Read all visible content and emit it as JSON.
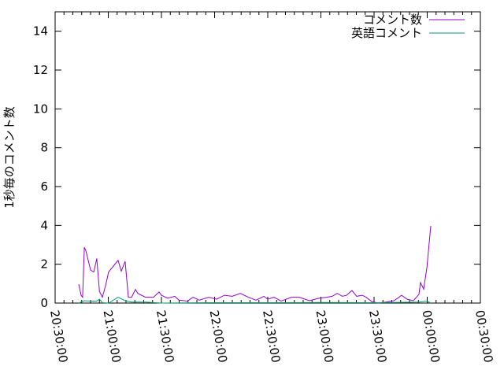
{
  "chart_data": {
    "type": "line",
    "title": "",
    "xlabel": "",
    "ylabel": "1秒毎のコメント数",
    "xlim": [
      "20:30:00",
      "00:30:00"
    ],
    "ylim": [
      0,
      15
    ],
    "x_ticks": [
      "20:30:00",
      "21:00:00",
      "21:30:00",
      "22:00:00",
      "22:30:00",
      "23:00:00",
      "23:30:00",
      "00:00:00",
      "00:30:00"
    ],
    "y_ticks": [
      "0",
      "2",
      "4",
      "6",
      "8",
      "10",
      "12",
      "14"
    ],
    "grid": false,
    "legend_position": "top-right",
    "series": [
      {
        "name": "コメント数",
        "color": "#9400d3",
        "x": [
          "20:43:20",
          "20:44:40",
          "20:45:30",
          "20:46:30",
          "20:47:20",
          "20:48:40",
          "20:50:00",
          "20:51:50",
          "20:53:30",
          "20:55:00",
          "20:56:40",
          "20:58:30",
          "21:00:10",
          "21:05:30",
          "21:07:20",
          "21:09:30",
          "21:11:20",
          "21:13:10",
          "21:15:20",
          "21:16:40",
          "21:21:00",
          "21:25:30",
          "21:28:40",
          "21:30:00",
          "21:33:30",
          "21:37:30",
          "21:39:50",
          "21:44:40",
          "21:47:50",
          "21:51:20",
          "21:56:40",
          "22:01:10",
          "22:05:30",
          "22:10:00",
          "22:14:30",
          "22:19:00",
          "22:23:20",
          "22:27:50",
          "22:30:00",
          "22:33:30",
          "22:37:30",
          "22:43:20",
          "22:47:50",
          "22:53:30",
          "22:59:00",
          "23:03:20",
          "23:06:20",
          "23:09:10",
          "23:12:10",
          "23:14:30",
          "23:17:30",
          "23:20:10",
          "23:23:20",
          "23:25:30",
          "23:28:40",
          "23:32:10",
          "23:36:40",
          "23:41:10",
          "23:43:20",
          "23:45:30",
          "23:48:40",
          "23:52:10",
          "23:55:20",
          "23:56:10",
          "23:58:00",
          "23:59:50",
          "00:02:00"
        ],
        "y": [
          0.97,
          0.4,
          0.3,
          2.87,
          2.7,
          2.2,
          1.7,
          1.6,
          2.3,
          0.6,
          0.3,
          0.9,
          1.6,
          2.2,
          1.65,
          2.15,
          0.3,
          0.3,
          0.7,
          0.5,
          0.3,
          0.3,
          0.57,
          0.4,
          0.25,
          0.35,
          0.15,
          0.1,
          0.3,
          0.15,
          0.3,
          0.2,
          0.4,
          0.35,
          0.5,
          0.3,
          0.15,
          0.35,
          0.2,
          0.3,
          0.1,
          0.3,
          0.3,
          0.12,
          0.25,
          0.3,
          0.35,
          0.5,
          0.35,
          0.4,
          0.65,
          0.35,
          0.4,
          0.3,
          0.08,
          0.0,
          0.05,
          0.12,
          0.25,
          0.4,
          0.2,
          0.12,
          0.45,
          1.05,
          0.72,
          1.83,
          3.97
        ]
      },
      {
        "name": "英語コメント",
        "color": "#009e73",
        "x": [
          "20:43:20",
          "20:46:30",
          "20:50:00",
          "20:53:30",
          "20:55:00",
          "20:56:40",
          "21:00:10",
          "21:05:30",
          "21:09:30",
          "21:13:10",
          "21:21:00",
          "21:30:00",
          "22:00:00",
          "22:30:00",
          "23:00:00",
          "23:30:00",
          "23:55:20",
          "23:59:50",
          "00:02:00"
        ],
        "y": [
          0,
          0.12,
          0.1,
          0.1,
          0.2,
          0.02,
          0,
          0.3,
          0.12,
          0.05,
          0.05,
          0,
          0.02,
          0.02,
          0.03,
          0.02,
          0.05,
          0.1,
          0
        ]
      }
    ]
  }
}
